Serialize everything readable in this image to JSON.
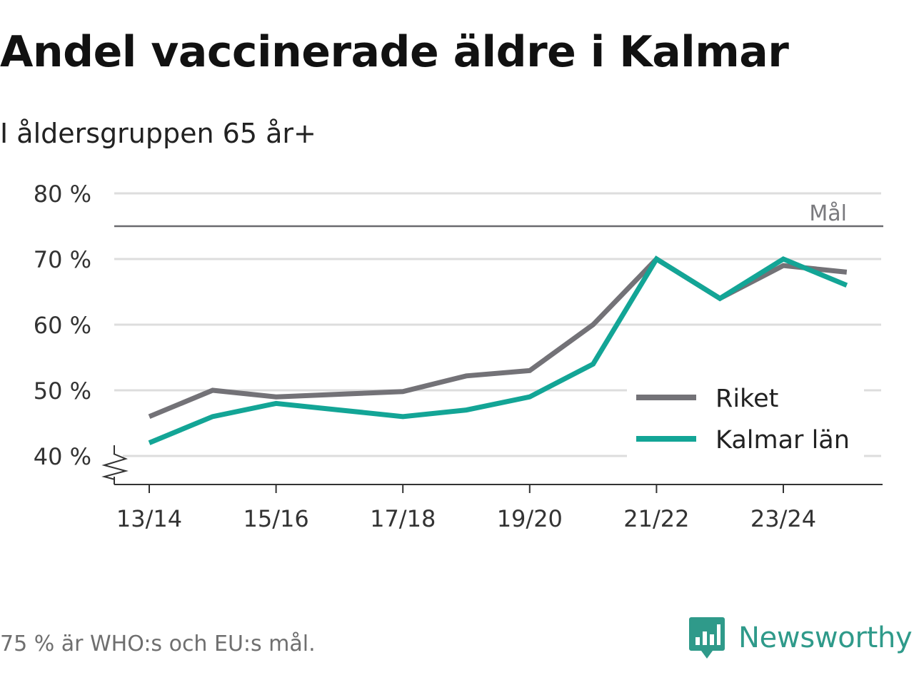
{
  "title": "Andel vaccinerade äldre i Kalmar",
  "subtitle": "I åldersgruppen 65 år+",
  "footnote": "75 % är WHO:s och EU:s mål.",
  "brand": "Newsworthy",
  "colors": {
    "riket": "#737277",
    "kalmar": "#13a596",
    "goal": "#6a6a6e",
    "grid": "#dddddd",
    "axis": "#333333",
    "brand": "#2f9a8a"
  },
  "chart_data": {
    "type": "line",
    "title": "Andel vaccinerade äldre i Kalmar",
    "xlabel": "",
    "ylabel": "",
    "x": [
      "13/14",
      "14/15",
      "15/16",
      "16/17",
      "17/18",
      "18/19",
      "19/20",
      "20/21",
      "21/22",
      "22/23",
      "23/24",
      "24/25"
    ],
    "x_tick_labels": [
      "13/14",
      "15/16",
      "17/18",
      "19/20",
      "21/22",
      "23/24"
    ],
    "y_tick_labels": [
      "40 %",
      "50 %",
      "60 %",
      "70 %",
      "80 %"
    ],
    "ylim": [
      36,
      80
    ],
    "y_ticks": [
      40,
      50,
      60,
      70,
      80
    ],
    "goal": {
      "value": 75,
      "label": "Mål"
    },
    "legend_position": "bottom-right",
    "series": [
      {
        "name": "Riket",
        "color": "#737277",
        "values": [
          46,
          50,
          49,
          49.4,
          49.8,
          52.2,
          53,
          60,
          70,
          64,
          69,
          68
        ]
      },
      {
        "name": "Kalmar län",
        "color": "#13a596",
        "values": [
          42,
          46,
          48,
          47,
          46,
          47,
          49,
          54,
          70,
          64,
          70,
          66
        ]
      }
    ]
  }
}
